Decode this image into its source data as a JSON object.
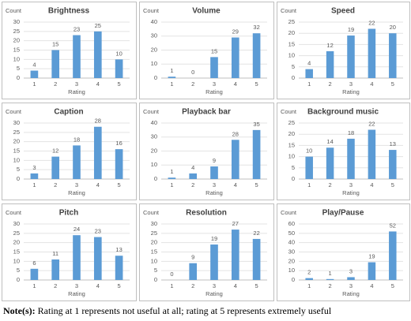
{
  "chart_data": [
    {
      "type": "bar",
      "title": "Brightness",
      "y_label": "Count",
      "x_label": "Rating",
      "categories": [
        "1",
        "2",
        "3",
        "4",
        "5"
      ],
      "values": [
        4,
        15,
        23,
        25,
        10
      ],
      "color": "#5b9bd5",
      "ylim": [
        0,
        30
      ],
      "yticks": [
        0,
        5,
        10,
        15,
        20,
        25,
        30
      ],
      "grid": true
    },
    {
      "type": "bar",
      "title": "Volume",
      "y_label": "Count",
      "x_label": "Rating",
      "categories": [
        "1",
        "2",
        "3",
        "4",
        "5"
      ],
      "values": [
        1,
        0,
        15,
        29,
        32
      ],
      "color": "#5b9bd5",
      "ylim": [
        0,
        40
      ],
      "yticks": [
        0,
        10,
        20,
        30,
        40
      ],
      "grid": true
    },
    {
      "type": "bar",
      "title": "Speed",
      "y_label": "Count",
      "x_label": "Rating",
      "categories": [
        "1",
        "2",
        "3",
        "4",
        "5"
      ],
      "values": [
        4,
        12,
        19,
        22,
        20
      ],
      "color": "#5b9bd5",
      "ylim": [
        0,
        25
      ],
      "yticks": [
        0,
        5,
        10,
        15,
        20,
        25
      ],
      "grid": true
    },
    {
      "type": "bar",
      "title": "Caption",
      "y_label": "Count",
      "x_label": "Rating",
      "categories": [
        "1",
        "2",
        "3",
        "4",
        "5"
      ],
      "values": [
        3,
        12,
        18,
        28,
        16
      ],
      "color": "#5b9bd5",
      "ylim": [
        0,
        30
      ],
      "yticks": [
        0,
        5,
        10,
        15,
        20,
        25,
        30
      ],
      "grid": true
    },
    {
      "type": "bar",
      "title": "Playback bar",
      "y_label": "Count",
      "x_label": "Rating",
      "categories": [
        "1",
        "2",
        "3",
        "4",
        "5"
      ],
      "values": [
        1,
        4,
        9,
        28,
        35
      ],
      "color": "#5b9bd5",
      "ylim": [
        0,
        40
      ],
      "yticks": [
        0,
        10,
        20,
        30,
        40
      ],
      "grid": true
    },
    {
      "type": "bar",
      "title": "Background music",
      "y_label": "Count",
      "x_label": "Rating",
      "categories": [
        "1",
        "2",
        "3",
        "4",
        "5"
      ],
      "values": [
        10,
        14,
        18,
        22,
        13
      ],
      "color": "#5b9bd5",
      "ylim": [
        0,
        25
      ],
      "yticks": [
        0,
        5,
        10,
        15,
        20,
        25
      ],
      "grid": true
    },
    {
      "type": "bar",
      "title": "Pitch",
      "y_label": "Count",
      "x_label": "Rating",
      "categories": [
        "1",
        "2",
        "3",
        "4",
        "5"
      ],
      "values": [
        6,
        11,
        24,
        23,
        13
      ],
      "color": "#5b9bd5",
      "ylim": [
        0,
        30
      ],
      "yticks": [
        0,
        5,
        10,
        15,
        20,
        25,
        30
      ],
      "grid": true
    },
    {
      "type": "bar",
      "title": "Resolution",
      "y_label": "Count",
      "x_label": "Rating",
      "categories": [
        "1",
        "2",
        "3",
        "4",
        "5"
      ],
      "values": [
        0,
        9,
        19,
        27,
        22
      ],
      "color": "#5b9bd5",
      "ylim": [
        0,
        30
      ],
      "yticks": [
        0,
        5,
        10,
        15,
        20,
        25,
        30
      ],
      "grid": true
    },
    {
      "type": "bar",
      "title": "Play/Pause",
      "y_label": "Count",
      "x_label": "Rating",
      "categories": [
        "1",
        "2",
        "3",
        "4",
        "5"
      ],
      "values": [
        2,
        1,
        3,
        19,
        52
      ],
      "color": "#5b9bd5",
      "ylim": [
        0,
        60
      ],
      "yticks": [
        0,
        10,
        20,
        30,
        40,
        50,
        60
      ],
      "grid": true
    }
  ],
  "note": {
    "label": "Note(s):",
    "text": " Rating at 1 represents not useful at all; rating at 5 represents extremely useful"
  }
}
